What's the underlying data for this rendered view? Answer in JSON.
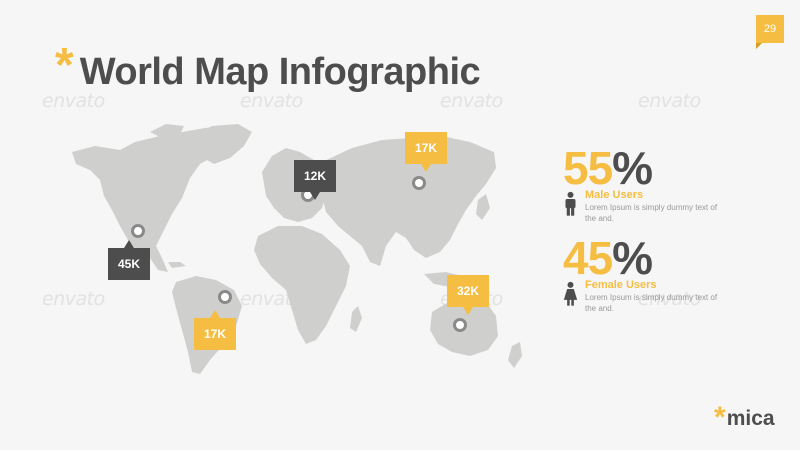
{
  "page": {
    "number": "29"
  },
  "header": {
    "star": "*",
    "title": "World Map Infographic"
  },
  "watermark": {
    "text": "envato"
  },
  "map": {
    "land_color": "#cfcfcd",
    "callouts": [
      {
        "label": "45K",
        "region": "North America",
        "style": "dark"
      },
      {
        "label": "17K",
        "region": "South America",
        "style": "yellow"
      },
      {
        "label": "12K",
        "region": "Europe",
        "style": "dark"
      },
      {
        "label": "17K",
        "region": "Russia",
        "style": "yellow"
      },
      {
        "label": "32K",
        "region": "Australia",
        "style": "yellow"
      }
    ]
  },
  "stats": [
    {
      "value": "55",
      "unit": "%",
      "label": "Male Users",
      "description": "Lorem Ipsum is simply dummy text of the and.",
      "icon": "male-person-icon"
    },
    {
      "value": "45",
      "unit": "%",
      "label": "Female Users",
      "description": "Lorem Ipsum is simply dummy text of the and.",
      "icon": "female-person-icon"
    }
  ],
  "brand": {
    "star": "*",
    "name": "mica"
  },
  "colors": {
    "accent": "#f5bd42",
    "dark": "#4d4d4d",
    "background": "#f6f6f6"
  }
}
